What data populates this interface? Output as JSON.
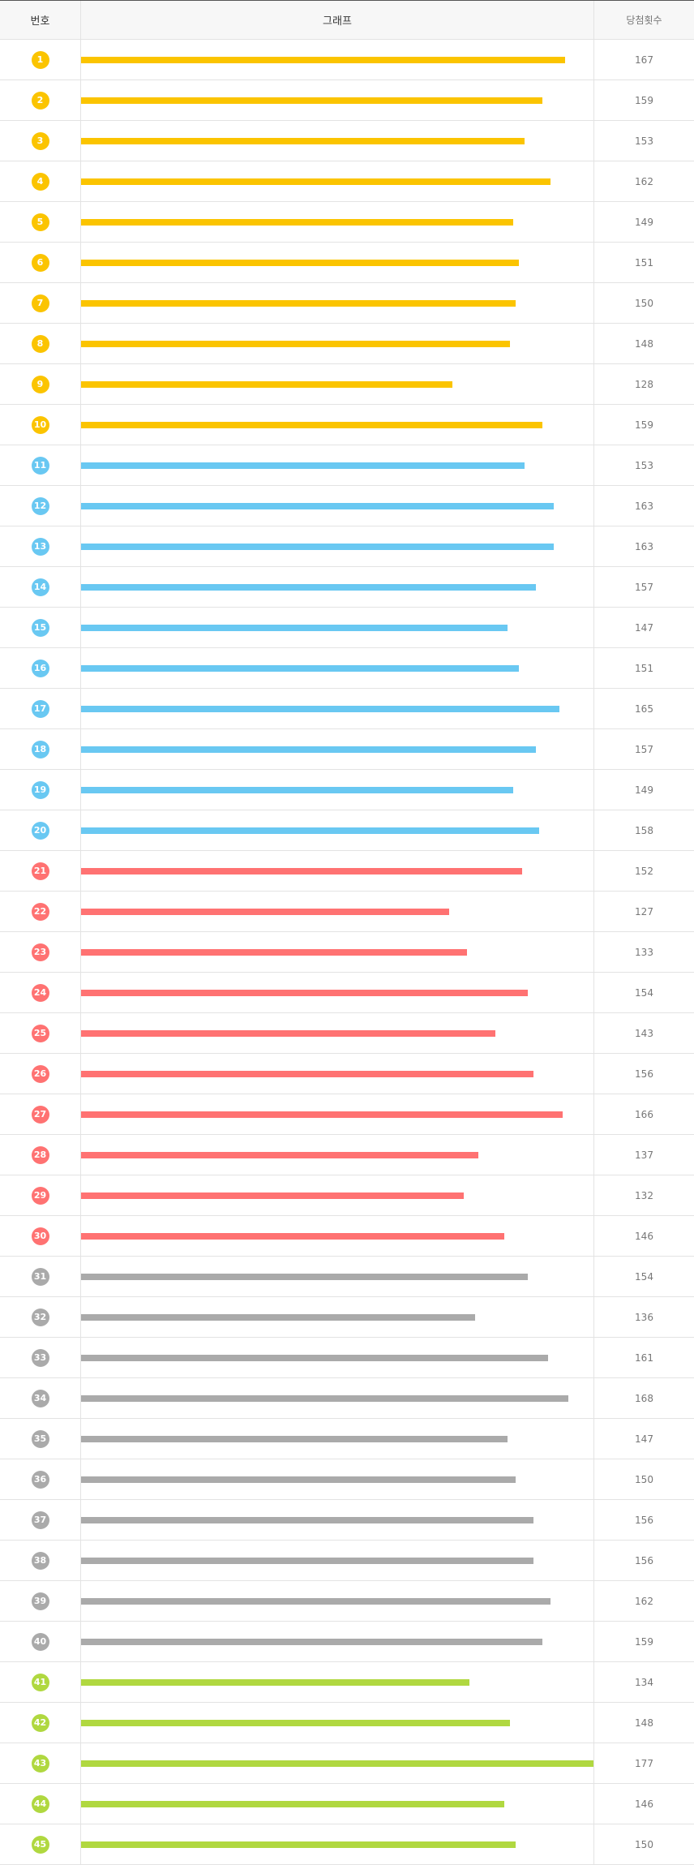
{
  "table": {
    "headers": [
      "번호",
      "그래프",
      "당첨횟수"
    ],
    "rows": [
      {
        "number": 1,
        "count": 167,
        "color": "#fbc400"
      },
      {
        "number": 2,
        "count": 159,
        "color": "#fbc400"
      },
      {
        "number": 3,
        "count": 153,
        "color": "#fbc400"
      },
      {
        "number": 4,
        "count": 162,
        "color": "#fbc400"
      },
      {
        "number": 5,
        "count": 149,
        "color": "#fbc400"
      },
      {
        "number": 6,
        "count": 151,
        "color": "#fbc400"
      },
      {
        "number": 7,
        "count": 150,
        "color": "#fbc400"
      },
      {
        "number": 8,
        "count": 148,
        "color": "#fbc400"
      },
      {
        "number": 9,
        "count": 128,
        "color": "#fbc400"
      },
      {
        "number": 10,
        "count": 159,
        "color": "#fbc400"
      },
      {
        "number": 11,
        "count": 153,
        "color": "#69c8f2"
      },
      {
        "number": 12,
        "count": 163,
        "color": "#69c8f2"
      },
      {
        "number": 13,
        "count": 163,
        "color": "#69c8f2"
      },
      {
        "number": 14,
        "count": 157,
        "color": "#69c8f2"
      },
      {
        "number": 15,
        "count": 147,
        "color": "#69c8f2"
      },
      {
        "number": 16,
        "count": 151,
        "color": "#69c8f2"
      },
      {
        "number": 17,
        "count": 165,
        "color": "#69c8f2"
      },
      {
        "number": 18,
        "count": 157,
        "color": "#69c8f2"
      },
      {
        "number": 19,
        "count": 149,
        "color": "#69c8f2"
      },
      {
        "number": 20,
        "count": 158,
        "color": "#69c8f2"
      },
      {
        "number": 21,
        "count": 152,
        "color": "#ff7272"
      },
      {
        "number": 22,
        "count": 127,
        "color": "#ff7272"
      },
      {
        "number": 23,
        "count": 133,
        "color": "#ff7272"
      },
      {
        "number": 24,
        "count": 154,
        "color": "#ff7272"
      },
      {
        "number": 25,
        "count": 143,
        "color": "#ff7272"
      },
      {
        "number": 26,
        "count": 156,
        "color": "#ff7272"
      },
      {
        "number": 27,
        "count": 166,
        "color": "#ff7272"
      },
      {
        "number": 28,
        "count": 137,
        "color": "#ff7272"
      },
      {
        "number": 29,
        "count": 132,
        "color": "#ff7272"
      },
      {
        "number": 30,
        "count": 146,
        "color": "#ff7272"
      },
      {
        "number": 31,
        "count": 154,
        "color": "#aaaaaa"
      },
      {
        "number": 32,
        "count": 136,
        "color": "#aaaaaa"
      },
      {
        "number": 33,
        "count": 161,
        "color": "#aaaaaa"
      },
      {
        "number": 34,
        "count": 168,
        "color": "#aaaaaa"
      },
      {
        "number": 35,
        "count": 147,
        "color": "#aaaaaa"
      },
      {
        "number": 36,
        "count": 150,
        "color": "#aaaaaa"
      },
      {
        "number": 37,
        "count": 156,
        "color": "#aaaaaa"
      },
      {
        "number": 38,
        "count": 156,
        "color": "#aaaaaa"
      },
      {
        "number": 39,
        "count": 162,
        "color": "#aaaaaa"
      },
      {
        "number": 40,
        "count": 159,
        "color": "#aaaaaa"
      },
      {
        "number": 41,
        "count": 134,
        "color": "#b0d840"
      },
      {
        "number": 42,
        "count": 148,
        "color": "#b0d840"
      },
      {
        "number": 43,
        "count": 177,
        "color": "#b0d840"
      },
      {
        "number": 44,
        "count": 146,
        "color": "#b0d840"
      },
      {
        "number": 45,
        "count": 150,
        "color": "#b0d840"
      }
    ]
  }
}
